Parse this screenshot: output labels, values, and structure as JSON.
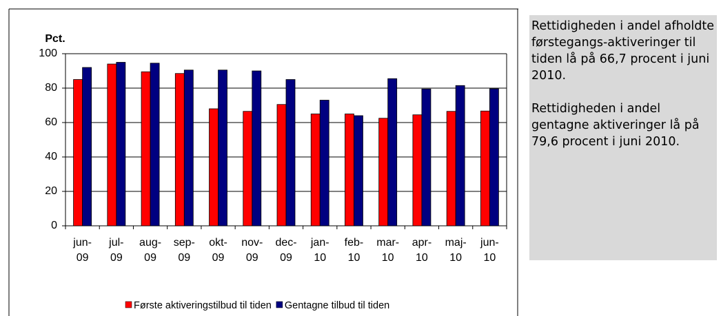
{
  "chart_data": {
    "type": "bar",
    "y_label": "Pct.",
    "categories": [
      "jun-09",
      "jul-09",
      "aug-09",
      "sep-09",
      "okt-09",
      "nov-09",
      "dec-09",
      "jan-10",
      "feb-10",
      "mar-10",
      "apr-10",
      "maj-10",
      "jun-10"
    ],
    "series": [
      {
        "name": "Første aktiveringstilbud til tiden",
        "color": "#ff0000",
        "values": [
          85,
          94,
          89.5,
          88.5,
          68,
          66.5,
          70.5,
          65,
          65,
          62.5,
          64.5,
          66.5,
          66.7
        ]
      },
      {
        "name": "Gentagne tilbud til tiden",
        "color": "#000080",
        "values": [
          92,
          95,
          94.5,
          90.5,
          90.5,
          90,
          85,
          73,
          64,
          85.5,
          79.5,
          81.5,
          79.6
        ]
      }
    ],
    "ylim": [
      0,
      100
    ],
    "yticks": [
      0,
      20,
      40,
      60,
      80,
      100
    ],
    "grid": true,
    "legend": "bottom"
  },
  "side_text": {
    "paragraphs": [
      "Rettidigheden i andel afholdte førstegangs-aktiveringer til tiden lå på 66,7 procent i juni 2010.",
      "Rettidigheden i andel gentagne aktiveringer lå på 79,6 procent i juni 2010."
    ]
  }
}
